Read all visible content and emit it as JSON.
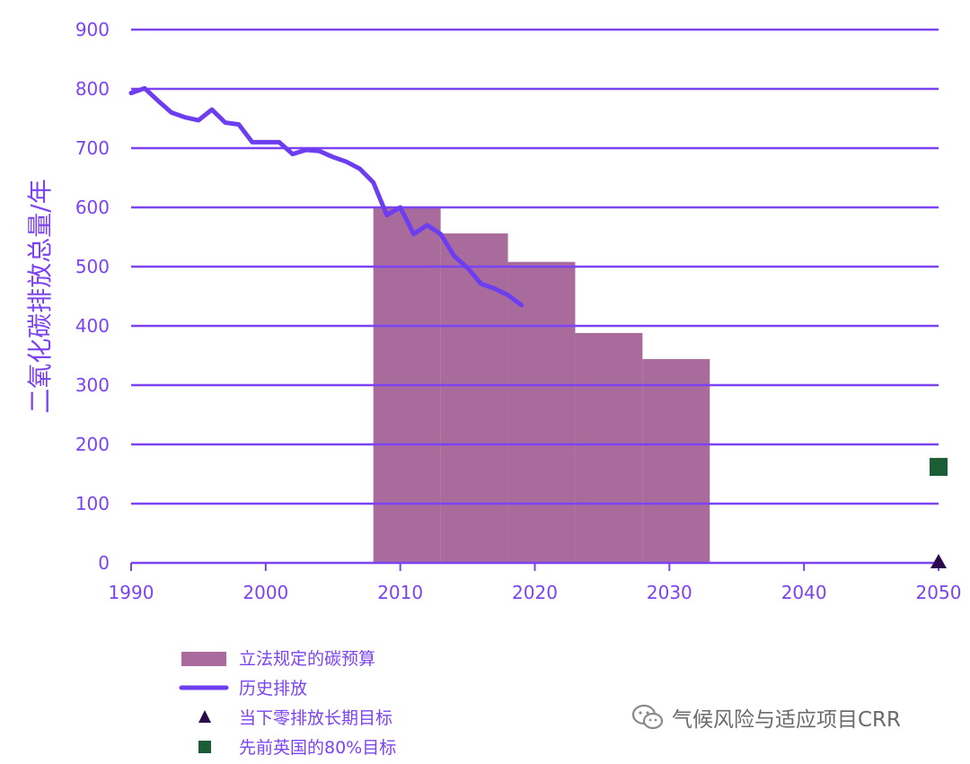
{
  "chart_data": {
    "type": "bar",
    "xlim": [
      1990,
      2050
    ],
    "ylim": [
      0,
      900
    ],
    "ylabel": "二氧化碳排放总量/年",
    "xlabel": "",
    "x_ticks": [
      "1990",
      "2000",
      "2010",
      "2020",
      "2030",
      "2040",
      "2050"
    ],
    "y_ticks": [
      "0",
      "100",
      "200",
      "300",
      "400",
      "500",
      "600",
      "700",
      "800",
      "900"
    ],
    "grid": true,
    "legend_position": "bottom-left",
    "colors": {
      "axis": "#7b43f2",
      "grid": "#7b43f2",
      "budget": "#a96b9c",
      "history": "#6d3ef0",
      "triangle": "#2a0a4a",
      "square": "#1b5e35"
    },
    "budgets": [
      {
        "start": 2008,
        "end": 2013,
        "value": 600
      },
      {
        "start": 2013,
        "end": 2018,
        "value": 556
      },
      {
        "start": 2018,
        "end": 2023,
        "value": 508
      },
      {
        "start": 2023,
        "end": 2028,
        "value": 388
      },
      {
        "start": 2028,
        "end": 2033,
        "value": 344
      }
    ],
    "history": {
      "x": [
        1990,
        1991,
        1992,
        1993,
        1994,
        1995,
        1996,
        1997,
        1998,
        1999,
        2000,
        2001,
        2002,
        2003,
        2004,
        2005,
        2006,
        2007,
        2008,
        2009,
        2010,
        2011,
        2012,
        2013,
        2014,
        2015,
        2016,
        2017,
        2018,
        2019
      ],
      "y": [
        793,
        801,
        780,
        760,
        752,
        747,
        765,
        743,
        740,
        710,
        710,
        710,
        690,
        697,
        695,
        685,
        677,
        665,
        642,
        587,
        600,
        555,
        570,
        555,
        518,
        498,
        471,
        463,
        452,
        435
      ]
    },
    "targets": [
      {
        "legend": "当下零排放长期目标",
        "x": 2050,
        "y": 0,
        "marker": "triangle"
      },
      {
        "legend": "先前英国的80%目标",
        "x": 2050,
        "y": 162,
        "marker": "square"
      }
    ],
    "legend": [
      {
        "label": "立法规定的碳预算",
        "key": "budget"
      },
      {
        "label": "历史排放",
        "key": "history"
      },
      {
        "label": "当下零排放长期目标",
        "key": "triangle"
      },
      {
        "label": "先前英国的80%目标",
        "key": "square"
      }
    ]
  },
  "watermark": {
    "icon": "wechat-icon",
    "text": "气候风险与适应项目CRR"
  }
}
